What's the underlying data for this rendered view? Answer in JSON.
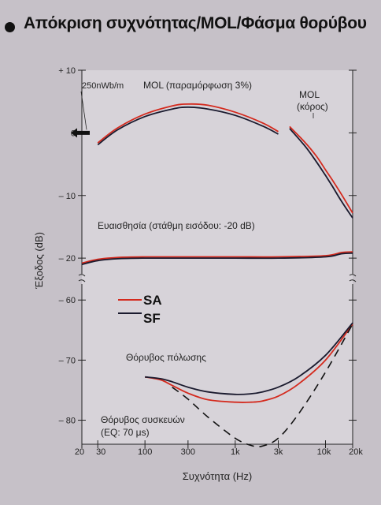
{
  "chart_data": {
    "type": "line",
    "title": "Απόκριση συχνότητας/MOL/Φάσμα θορύβου",
    "xlabel": "Συχνότητα (Hz)",
    "ylabel": "Έξοδος (dB)",
    "x_scale": "log",
    "xlim": [
      20,
      20000
    ],
    "ylim_upper": [
      -22,
      10
    ],
    "ylim_lower": [
      -84,
      -58
    ],
    "x_ticks": [
      {
        "value": 20,
        "label": "20"
      },
      {
        "value": 30,
        "label": "30"
      },
      {
        "value": 100,
        "label": "100"
      },
      {
        "value": 300,
        "label": "300"
      },
      {
        "value": 1000,
        "label": "1k"
      },
      {
        "value": 3000,
        "label": "3k"
      },
      {
        "value": 10000,
        "label": "10k"
      },
      {
        "value": 20000,
        "label": "20k"
      }
    ],
    "y_ticks": [
      {
        "value": 10,
        "label": "+ 10"
      },
      {
        "value": 0,
        "label": "0"
      },
      {
        "value": -10,
        "label": "– 10"
      },
      {
        "value": -20,
        "label": "– 20"
      },
      {
        "value": -60,
        "label": "– 60"
      },
      {
        "value": -70,
        "label": "– 70"
      },
      {
        "value": -80,
        "label": "– 80"
      }
    ],
    "annotations": {
      "ref_level": "250nWb/m",
      "mol_distortion": "MOL (παραμόρφωση 3%)",
      "mol_level_1": "MOL",
      "mol_level_2": "(κόρος)",
      "sensitivity": "Ευαισθησία (στάθμη εισόδου: -20 dB)",
      "bias_noise": "Θόρυβος πόλωσης",
      "device_noise_1": "Θόρυβος συσκευών",
      "device_noise_2": "(EQ: 70 μs)"
    },
    "legend": [
      {
        "name": "SA",
        "color": "#d42a1e"
      },
      {
        "name": "SF",
        "color": "#1a1a2e"
      }
    ],
    "series": [
      {
        "name": "SA",
        "group": "MOL (παραμόρφωση 3%)",
        "x": [
          30,
          50,
          100,
          200,
          300,
          500,
          1000,
          2000,
          3000
        ],
        "y": [
          -1.6,
          0.8,
          3.0,
          4.3,
          4.6,
          4.4,
          3.3,
          1.6,
          0.2
        ]
      },
      {
        "name": "SF",
        "group": "MOL (παραμόρφωση 3%)",
        "x": [
          30,
          50,
          100,
          200,
          300,
          500,
          1000,
          2000,
          3000
        ],
        "y": [
          -1.9,
          0.5,
          2.6,
          3.8,
          4.1,
          3.8,
          2.8,
          1.1,
          -0.2
        ]
      },
      {
        "name": "SA",
        "group": "MOL (κόρος)",
        "x": [
          4000,
          6000,
          8000,
          10000,
          12000,
          15000,
          20000
        ],
        "y": [
          1.0,
          -1.6,
          -3.8,
          -5.9,
          -7.6,
          -9.8,
          -12.8
        ]
      },
      {
        "name": "SF",
        "group": "MOL (κόρος)",
        "x": [
          4000,
          6000,
          8000,
          10000,
          12000,
          15000,
          20000
        ],
        "y": [
          0.7,
          -2.2,
          -4.7,
          -6.8,
          -8.6,
          -10.9,
          -13.6
        ]
      },
      {
        "name": "SA",
        "group": "Ευαισθησία",
        "x": [
          20,
          30,
          50,
          100,
          300,
          1000,
          3000,
          10000,
          15000,
          20000
        ],
        "y": [
          -20.8,
          -20.2,
          -19.9,
          -19.8,
          -19.8,
          -19.8,
          -19.8,
          -19.6,
          -19.1,
          -19.0
        ]
      },
      {
        "name": "SF",
        "group": "Ευαισθησία",
        "x": [
          20,
          30,
          50,
          100,
          300,
          1000,
          3000,
          10000,
          15000,
          20000
        ],
        "y": [
          -21.0,
          -20.4,
          -20.1,
          -20.0,
          -20.0,
          -20.0,
          -20.0,
          -19.8,
          -19.3,
          -19.2
        ]
      },
      {
        "name": "SA",
        "group": "Θόρυβος πόλωσης",
        "x": [
          100,
          150,
          200,
          300,
          500,
          1000,
          1500,
          2000,
          3000,
          5000,
          10000,
          20000
        ],
        "y": [
          -72.8,
          -73.3,
          -74.2,
          -75.5,
          -76.6,
          -77.0,
          -77.0,
          -76.8,
          -76.0,
          -74.0,
          -70.0,
          -64.0
        ]
      },
      {
        "name": "SF",
        "group": "Θόρυβος πόλωσης",
        "x": [
          100,
          150,
          200,
          300,
          500,
          1000,
          1500,
          2000,
          3000,
          5000,
          10000,
          20000
        ],
        "y": [
          -72.8,
          -73.1,
          -73.6,
          -74.5,
          -75.3,
          -75.7,
          -75.6,
          -75.3,
          -74.5,
          -72.8,
          -69.2,
          -63.8
        ]
      },
      {
        "name": "Θόρυβος συσκευών",
        "style": "dashed",
        "x": [
          200,
          300,
          500,
          1000,
          1500,
          2000,
          3000,
          5000,
          10000,
          20000
        ],
        "y": [
          -74.5,
          -76.5,
          -79.5,
          -83.0,
          -84.2,
          -84.3,
          -83.0,
          -79.0,
          -72.0,
          -64.0
        ]
      }
    ],
    "grid": false,
    "legend_position": "center-left",
    "axis_break": "-20 to -60 dB"
  }
}
